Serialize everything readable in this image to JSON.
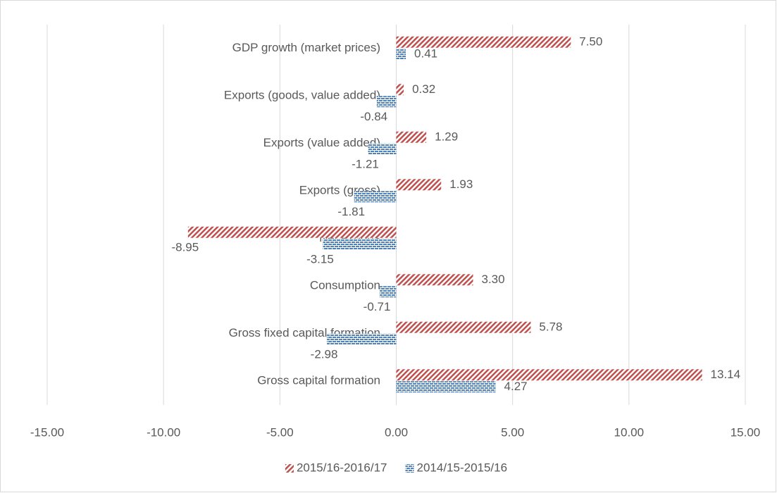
{
  "chart_data": {
    "type": "bar",
    "orientation": "horizontal",
    "categories": [
      "GDP growth (market prices)",
      "Exports (goods, value added)",
      "Exports (value added)",
      "Exports (gross)",
      "Net exports",
      "Consumption",
      "Gross fixed capital formation",
      "Gross capital formation"
    ],
    "series": [
      {
        "name": "2015/16-2016/17",
        "color": "#c0504d",
        "pattern": "diagonal",
        "values": [
          7.5,
          0.32,
          1.29,
          1.93,
          -8.95,
          3.3,
          5.78,
          13.14
        ],
        "value_labels": [
          "7.50",
          "0.32",
          "1.29",
          "1.93",
          "-8.95",
          "3.30",
          "5.78",
          "13.14"
        ]
      },
      {
        "name": "2014/15-2015/16",
        "color": "#4f81bd",
        "pattern": "brick",
        "values": [
          0.41,
          -0.84,
          -1.21,
          -1.81,
          -3.15,
          -0.71,
          -2.98,
          4.27
        ],
        "value_labels": [
          "0.41",
          "-0.84",
          "-1.21",
          "-1.81",
          "-3.15",
          "-0.71",
          "-2.98",
          "4.27"
        ]
      }
    ],
    "xlim": [
      -15,
      15
    ],
    "xticks": [
      {
        "value": -15,
        "label": "-15.00"
      },
      {
        "value": -10,
        "label": "-10.00"
      },
      {
        "value": -5,
        "label": "-5.00"
      },
      {
        "value": 0,
        "label": "0.00"
      },
      {
        "value": 5,
        "label": "5.00"
      },
      {
        "value": 10,
        "label": "10.00"
      },
      {
        "value": 15,
        "label": "15.00"
      }
    ],
    "grid": true,
    "legend": "bottom"
  }
}
